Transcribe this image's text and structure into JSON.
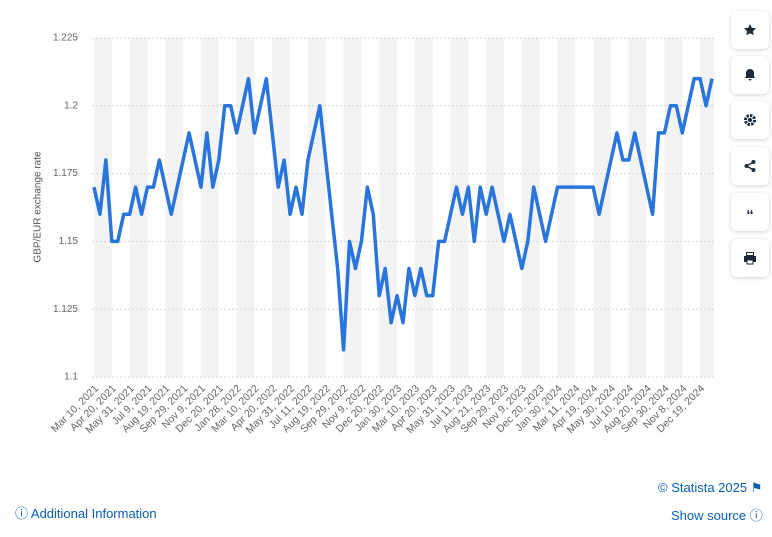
{
  "chart_data": {
    "type": "line",
    "y_label": "GBP/EUR exchange rate",
    "categories": [
      "Mar 10, 2021",
      null,
      null,
      "Apr 20, 2021",
      null,
      null,
      "May 31, 2021",
      null,
      null,
      "Jul 9, 2021",
      null,
      null,
      "Aug 19, 2021",
      null,
      null,
      "Sep 29, 2021",
      null,
      null,
      "Nov 9, 2021",
      null,
      null,
      "Dec 20, 2021",
      null,
      null,
      "Jan 28, 2022",
      null,
      null,
      "Mar 10, 2022",
      null,
      null,
      "Apr 20, 2022",
      null,
      null,
      "May 31, 2022",
      null,
      null,
      "Jul 11, 2022",
      null,
      null,
      "Aug 19, 2022",
      null,
      null,
      "Sep 29, 2022",
      null,
      null,
      "Nov 9, 2022",
      null,
      null,
      "Dec 20, 2022",
      null,
      null,
      "Jan 30, 2023",
      null,
      null,
      "Mar 10, 2023",
      null,
      null,
      "Apr 20, 2023",
      null,
      null,
      "May 31, 2023",
      null,
      null,
      "Jul 11, 2023",
      null,
      null,
      "Aug 21, 2023",
      null,
      null,
      "Sep 29, 2023",
      null,
      null,
      "Nov 9, 2023",
      null,
      null,
      "Dec 20, 2023",
      null,
      null,
      "Jan 30, 2024",
      null,
      null,
      "Mar 11, 2024",
      null,
      null,
      "Apr 19, 2024",
      null,
      null,
      "May 30, 2024",
      null,
      null,
      "Jul 10, 2024",
      null,
      null,
      "Aug 20, 2024",
      null,
      null,
      "Sep 30, 2024",
      null,
      null,
      "Nov 8, 2024",
      null,
      null,
      "Dec 19, 2024",
      null,
      null
    ],
    "values": [
      1.17,
      1.16,
      1.18,
      1.15,
      1.15,
      1.16,
      1.16,
      1.17,
      1.16,
      1.17,
      1.17,
      1.18,
      1.17,
      1.16,
      1.17,
      1.18,
      1.19,
      1.18,
      1.17,
      1.19,
      1.17,
      1.18,
      1.2,
      1.2,
      1.19,
      1.2,
      1.21,
      1.19,
      1.2,
      1.21,
      1.19,
      1.17,
      1.18,
      1.16,
      1.17,
      1.16,
      1.18,
      1.19,
      1.2,
      1.18,
      1.16,
      1.14,
      1.11,
      1.15,
      1.14,
      1.15,
      1.17,
      1.16,
      1.13,
      1.14,
      1.12,
      1.13,
      1.12,
      1.14,
      1.13,
      1.14,
      1.13,
      1.13,
      1.15,
      1.15,
      1.16,
      1.17,
      1.16,
      1.17,
      1.15,
      1.17,
      1.16,
      1.17,
      1.16,
      1.15,
      1.16,
      1.15,
      1.14,
      1.15,
      1.17,
      1.16,
      1.15,
      1.16,
      1.17,
      1.17,
      1.17,
      1.17,
      1.17,
      1.17,
      1.17,
      1.16,
      1.17,
      1.18,
      1.19,
      1.18,
      1.18,
      1.19,
      1.18,
      1.17,
      1.16,
      1.19,
      1.19,
      1.2,
      1.2,
      1.19,
      1.2,
      1.21,
      1.21,
      1.2,
      1.21
    ],
    "color": "#2876dd",
    "ylim": [
      1.1,
      1.225
    ],
    "yticks": [
      1.1,
      1.125,
      1.15,
      1.175,
      1.2,
      1.225
    ],
    "grid": true
  },
  "footer": {
    "copyright": "© Statista 2025",
    "additional_info": "Additional Information",
    "show_source": "Show source"
  }
}
